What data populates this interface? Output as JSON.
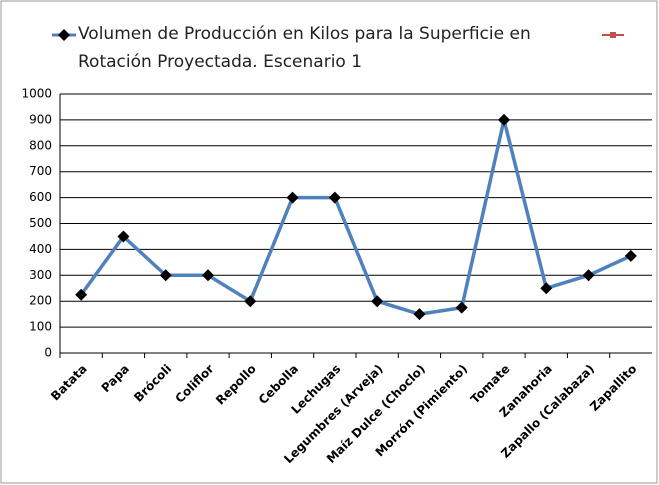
{
  "chart_data": {
    "type": "line",
    "categories": [
      "Batata",
      "Papa",
      "Brócoli",
      "Coliflor",
      "Repollo",
      "Cebolla",
      "Lechugas",
      "Legumbres (Arveja)",
      "Maíz Dulce (Choclo)",
      "Morrón (Pimiento)",
      "Tomate",
      "Zanahoria",
      "Zapallo (Calabaza)",
      "Zapallito"
    ],
    "series": [
      {
        "name": "Volumen de Producción en Kilos para la Superficie en Rotación Proyectada. Escenario 1",
        "color": "#4f81bd",
        "values": [
          225,
          450,
          300,
          300,
          200,
          600,
          600,
          200,
          150,
          175,
          900,
          250,
          300,
          375
        ]
      }
    ],
    "ylim": [
      0,
      1000
    ],
    "yticks": [
      0,
      100,
      200,
      300,
      400,
      500,
      600,
      700,
      800,
      900,
      1000
    ],
    "grid": true
  }
}
